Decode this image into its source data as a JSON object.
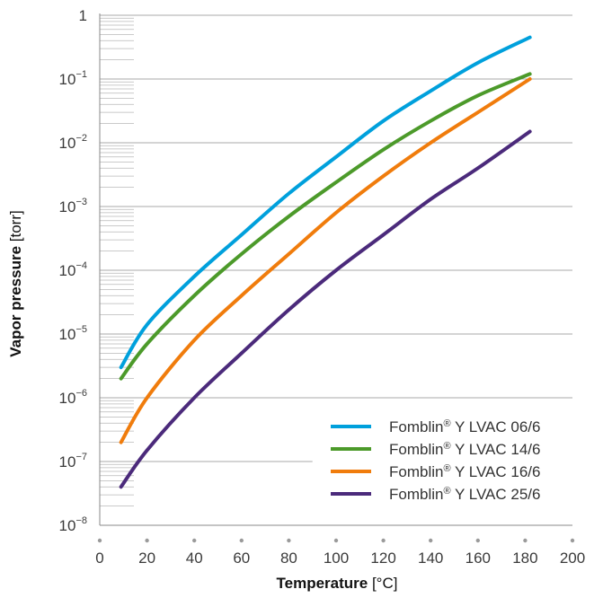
{
  "chart_data": {
    "type": "line",
    "xlabel": {
      "bold": "Temperature",
      "unit": "[°C]"
    },
    "ylabel": {
      "bold": "Vapor pressure",
      "unit": "[torr]"
    },
    "xlim": [
      0,
      200
    ],
    "ylim": [
      1e-08,
      1
    ],
    "y_scale": "log",
    "x_ticks": [
      0,
      20,
      40,
      60,
      80,
      100,
      120,
      140,
      160,
      180,
      200
    ],
    "y_ticks": [
      {
        "base": "1",
        "exp": ""
      },
      {
        "base": "10",
        "exp": "−1"
      },
      {
        "base": "10",
        "exp": "−2"
      },
      {
        "base": "10",
        "exp": "−3"
      },
      {
        "base": "10",
        "exp": "−4"
      },
      {
        "base": "10",
        "exp": "−5"
      },
      {
        "base": "10",
        "exp": "−6"
      },
      {
        "base": "10",
        "exp": "−7"
      },
      {
        "base": "10",
        "exp": "−8"
      }
    ],
    "grid": "horizontal",
    "legend_position": "bottom-right",
    "series": [
      {
        "name": "Fomblin",
        "mark": "®",
        "suffix": " Y LVAC 06/6",
        "color": "#00a0dc",
        "x": [
          9,
          20,
          40,
          60,
          80,
          100,
          120,
          140,
          160,
          182
        ],
        "y": [
          3e-06,
          1.4e-05,
          8e-05,
          0.00036,
          0.0016,
          0.006,
          0.022,
          0.065,
          0.18,
          0.45
        ]
      },
      {
        "name": "Fomblin",
        "mark": "®",
        "suffix": " Y LVAC 14/6",
        "color": "#4c9a2a",
        "x": [
          9,
          20,
          40,
          60,
          80,
          100,
          120,
          140,
          160,
          182
        ],
        "y": [
          2e-06,
          7e-06,
          4e-05,
          0.00018,
          0.0007,
          0.0024,
          0.0078,
          0.022,
          0.055,
          0.12
        ]
      },
      {
        "name": "Fomblin",
        "mark": "®",
        "suffix": " Y LVAC 16/6",
        "color": "#f07c0c",
        "x": [
          9,
          20,
          40,
          60,
          80,
          100,
          120,
          140,
          160,
          182
        ],
        "y": [
          2e-07,
          1e-06,
          8e-06,
          4e-05,
          0.00018,
          0.0008,
          0.003,
          0.01,
          0.03,
          0.1
        ]
      },
      {
        "name": "Fomblin",
        "mark": "®",
        "suffix": " Y LVAC 25/6",
        "color": "#4b2a7b",
        "x": [
          9,
          20,
          40,
          60,
          80,
          100,
          120,
          140,
          160,
          182
        ],
        "y": [
          4e-08,
          1.5e-07,
          1e-06,
          5e-06,
          2.4e-05,
          0.0001,
          0.00036,
          0.0013,
          0.004,
          0.015
        ]
      }
    ]
  }
}
